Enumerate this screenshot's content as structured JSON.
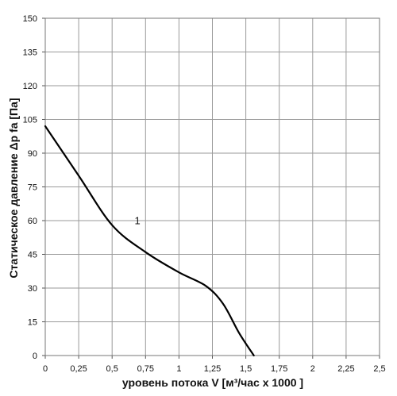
{
  "chart_data": {
    "type": "line",
    "ylabel": "Статическое давление  Δp fa [Па]",
    "xlabel": "уровень потока  V [м³/час x 1000 ]",
    "xlim": [
      0,
      2.5
    ],
    "ylim": [
      0,
      150
    ],
    "x_ticks": [
      0,
      0.25,
      0.5,
      0.75,
      1,
      1.25,
      1.5,
      1.75,
      2,
      2.25,
      2.5
    ],
    "x_tick_labels": [
      "0",
      "0,25",
      "0,5",
      "0,75",
      "1",
      "1,25",
      "1,5",
      "1,75",
      "2",
      "2,25",
      "2,5"
    ],
    "y_ticks": [
      0,
      15,
      30,
      45,
      60,
      75,
      90,
      105,
      120,
      135,
      150
    ],
    "y_tick_labels": [
      "0",
      "15",
      "30",
      "45",
      "60",
      "75",
      "90",
      "105",
      "120",
      "135",
      "150"
    ],
    "grid": true,
    "legend": "none",
    "series": [
      {
        "name": "1",
        "color": "#000000",
        "x": [
          0,
          0.25,
          0.5,
          0.75,
          1.0,
          1.2,
          1.33,
          1.45,
          1.56
        ],
        "y": [
          102,
          80,
          58,
          46,
          37,
          31,
          23,
          10,
          0
        ]
      }
    ],
    "annotations": [
      {
        "text": "1",
        "x": 0.65,
        "y": 62
      }
    ]
  }
}
